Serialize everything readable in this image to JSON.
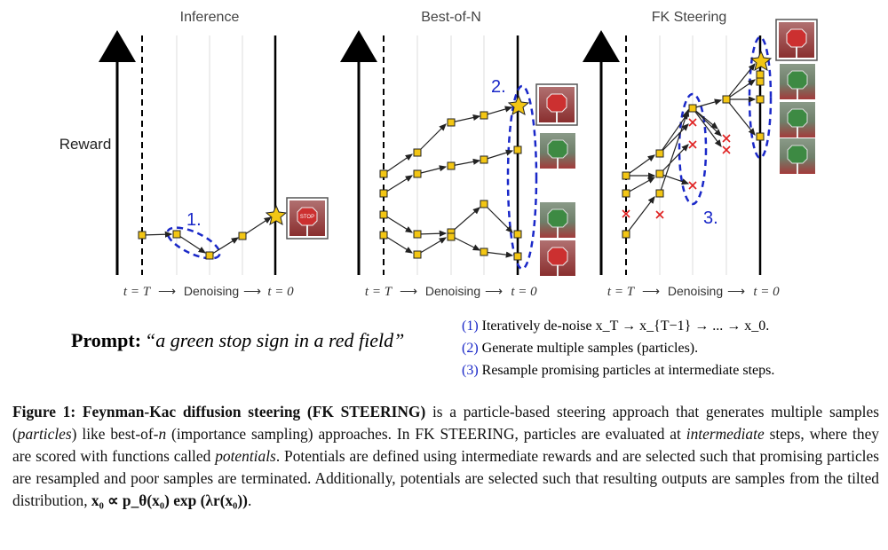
{
  "panels": [
    {
      "title": "Inference",
      "axis": [
        "t = T",
        "Denoising",
        "t = 0"
      ]
    },
    {
      "title": "Best-of-N",
      "axis": [
        "t = T",
        "Denoising",
        "t = 0"
      ]
    },
    {
      "title": "FK Steering",
      "axis": [
        "t = T",
        "Denoising",
        "t = 0"
      ]
    }
  ],
  "y_axis_label": "Reward",
  "step_labels": [
    "1.",
    "2.",
    "3."
  ],
  "prompt": {
    "label": "Prompt",
    "text": "“a green stop sign in a red field”"
  },
  "legend": [
    {
      "num": "(1)",
      "text": "Iteratively de-noise x_T → x_{T−1} → ... → x_0."
    },
    {
      "num": "(2)",
      "text": "Generate multiple samples (particles)."
    },
    {
      "num": "(3)",
      "text": "Resample promising particles at intermediate steps."
    }
  ],
  "image_sign_text": "STOP",
  "caption": {
    "label": "Figure 1:",
    "title": "Feynman-Kac diffusion steering (",
    "title_sc": "FK STEERING",
    "title_end": ")",
    "p1": " is a particle-based steering approach that generates multiple samples (",
    "p1_it": "particles",
    "p2": ") like best-of-",
    "p2_it": "n",
    "p3": " (importance sampling) approaches. In ",
    "p3_sc": "FK STEERING",
    "p4": ", particles are evaluated at ",
    "p4_it": "intermediate",
    "p5": " steps, where they are scored with functions called ",
    "p5_it": "potentials",
    "p6": ". Potentials are defined using intermediate rewards and are selected such that promising particles are resampled and poor samples are terminated. Additionally, potentials are selected such that resulting outputs are samples from the tilted distribution, ",
    "formula": "x₀ ∝ p_θ(x₀) exp (λr(x₀))",
    "p7": "."
  },
  "colors": {
    "node": "#f3c614",
    "dash": "#1a28c8",
    "cross": "#e02020",
    "star": "#f3c614"
  }
}
